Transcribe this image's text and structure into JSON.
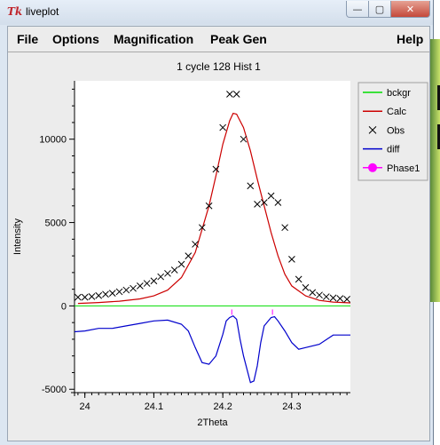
{
  "window": {
    "title": "liveplot",
    "logo_text": "Tk",
    "minimize_glyph": "—",
    "maximize_glyph": "▢",
    "close_glyph": "✕"
  },
  "menu": {
    "file": "File",
    "options": "Options",
    "magnification": "Magnification",
    "peak_gen": "Peak Gen",
    "help": "Help"
  },
  "colors": {
    "bckgr": "#00dd00",
    "calc": "#cc0000",
    "obs": "#000000",
    "diff": "#0000cc",
    "phase1": "#ff00ff"
  },
  "chart_data": {
    "type": "line",
    "title": "1 cycle 128 Hist 1",
    "xlabel": "2Theta",
    "ylabel": "Intensity",
    "xlim": [
      23.985,
      24.385
    ],
    "ylim": [
      -5200,
      13500
    ],
    "xticks": [
      24,
      24.1,
      24.2,
      24.3
    ],
    "xtick_labels": [
      "24",
      "24.1",
      "24.2",
      "24.3"
    ],
    "yticks": [
      -5000,
      0,
      5000,
      10000
    ],
    "ytick_labels": [
      "-5000",
      "0",
      "5000",
      "10000"
    ],
    "grid": false,
    "legend_position": "right, outside plot",
    "legend": [
      "bckgr",
      "Calc",
      "Obs",
      "diff",
      "Phase1"
    ],
    "bckgr": {
      "x": [
        23.985,
        24.385
      ],
      "y": [
        0,
        0
      ]
    },
    "calc": {
      "x": [
        23.99,
        24.02,
        24.05,
        24.08,
        24.1,
        24.12,
        24.14,
        24.16,
        24.18,
        24.19,
        24.2,
        24.21,
        24.215,
        24.22,
        24.23,
        24.24,
        24.25,
        24.26,
        24.27,
        24.28,
        24.29,
        24.3,
        24.32,
        24.34,
        24.36,
        24.385
      ],
      "y": [
        150,
        200,
        280,
        420,
        600,
        950,
        1700,
        3200,
        6000,
        7800,
        9700,
        11100,
        11550,
        11500,
        10700,
        9300,
        7600,
        6000,
        4400,
        3000,
        1900,
        1200,
        600,
        330,
        230,
        180
      ]
    },
    "obs": {
      "x": [
        23.99,
        24.0,
        24.01,
        24.02,
        24.03,
        24.04,
        24.05,
        24.06,
        24.07,
        24.08,
        24.09,
        24.1,
        24.11,
        24.12,
        24.13,
        24.14,
        24.15,
        24.16,
        24.17,
        24.18,
        24.19,
        24.2,
        24.21,
        24.22,
        24.23,
        24.24,
        24.25,
        24.26,
        24.27,
        24.28,
        24.29,
        24.3,
        24.31,
        24.32,
        24.33,
        24.34,
        24.35,
        24.36,
        24.37,
        24.38
      ],
      "y": [
        520,
        520,
        560,
        620,
        700,
        760,
        850,
        950,
        1050,
        1200,
        1350,
        1500,
        1750,
        1950,
        2150,
        2500,
        3000,
        3700,
        4700,
        6000,
        8200,
        10700,
        12700,
        12700,
        10000,
        7200,
        6100,
        6200,
        6600,
        6200,
        4700,
        2800,
        1600,
        1100,
        800,
        650,
        550,
        480,
        440,
        400
      ]
    },
    "diff": {
      "x": [
        23.985,
        24.0,
        24.02,
        24.04,
        24.06,
        24.08,
        24.1,
        24.12,
        24.14,
        24.15,
        24.16,
        24.17,
        24.18,
        24.19,
        24.2,
        24.205,
        24.21,
        24.215,
        24.22,
        24.225,
        24.23,
        24.24,
        24.245,
        24.25,
        24.255,
        24.26,
        24.27,
        24.275,
        24.28,
        24.29,
        24.3,
        24.31,
        24.32,
        24.34,
        24.36,
        24.385
      ],
      "y": [
        -1550,
        -1500,
        -1350,
        -1350,
        -1200,
        -1050,
        -900,
        -850,
        -1100,
        -1500,
        -2500,
        -3400,
        -3500,
        -3000,
        -1700,
        -900,
        -700,
        -600,
        -800,
        -2000,
        -3000,
        -4600,
        -4500,
        -3600,
        -2200,
        -1200,
        -700,
        -650,
        -900,
        -1500,
        -2200,
        -2600,
        -2500,
        -2300,
        -1750,
        -1750
      ]
    },
    "phase1": {
      "x": [
        24.213,
        24.272
      ]
    }
  }
}
